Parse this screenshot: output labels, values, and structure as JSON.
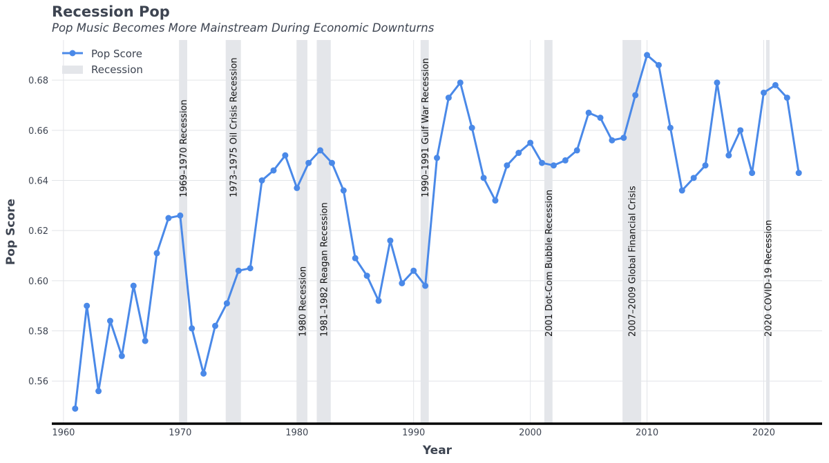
{
  "chart_data": {
    "type": "line",
    "title": "Recession Pop",
    "subtitle": "Pop Music Becomes More Mainstream During Economic Downturns",
    "xlabel": "Year",
    "ylabel": "Pop Score",
    "xlim": [
      1959,
      2025
    ],
    "ylim": [
      0.543,
      0.696
    ],
    "xticks": [
      1960,
      1970,
      1980,
      1990,
      2000,
      2010,
      2020
    ],
    "yticks": [
      0.56,
      0.58,
      0.6,
      0.62,
      0.64,
      0.66,
      0.68
    ],
    "ytick_labels": [
      "0.56",
      "0.58",
      "0.60",
      "0.62",
      "0.64",
      "0.66",
      "0.68"
    ],
    "grid": true,
    "legend_position": "top-left",
    "legend": [
      {
        "label": "Pop Score",
        "kind": "line-marker"
      },
      {
        "label": "Recession",
        "kind": "band"
      }
    ],
    "colors": {
      "line": "#4a89e8",
      "band": "#e4e6ea",
      "text": "#3d4451",
      "axis": "#000000"
    },
    "series": [
      {
        "name": "Pop Score",
        "x": [
          1961,
          1962,
          1963,
          1964,
          1965,
          1966,
          1967,
          1968,
          1969,
          1970,
          1971,
          1972,
          1973,
          1974,
          1975,
          1976,
          1977,
          1978,
          1979,
          1980,
          1981,
          1982,
          1983,
          1984,
          1985,
          1986,
          1987,
          1988,
          1989,
          1990,
          1991,
          1992,
          1993,
          1994,
          1995,
          1996,
          1997,
          1998,
          1999,
          2000,
          2001,
          2002,
          2003,
          2004,
          2005,
          2006,
          2007,
          2008,
          2009,
          2010,
          2011,
          2012,
          2013,
          2014,
          2015,
          2016,
          2017,
          2018,
          2019,
          2020,
          2021,
          2022,
          2023
        ],
        "values": [
          0.549,
          0.59,
          0.556,
          0.584,
          0.57,
          0.598,
          0.576,
          0.611,
          0.625,
          0.626,
          0.581,
          0.563,
          0.582,
          0.591,
          0.604,
          0.605,
          0.64,
          0.644,
          0.65,
          0.637,
          0.647,
          0.652,
          0.647,
          0.636,
          0.609,
          0.602,
          0.592,
          0.616,
          0.599,
          0.604,
          0.598,
          0.649,
          0.673,
          0.679,
          0.661,
          0.641,
          0.632,
          0.646,
          0.651,
          0.655,
          0.647,
          0.646,
          0.648,
          0.652,
          0.667,
          0.665,
          0.656,
          0.657,
          0.674,
          0.69,
          0.686,
          0.661,
          0.636,
          0.641,
          0.646,
          0.679,
          0.65,
          0.66,
          0.643,
          0.675,
          0.678,
          0.673,
          0.643
        ]
      }
    ],
    "recessions": [
      {
        "start": 1969.9,
        "end": 1970.6,
        "label": "1969–1970 Recession",
        "label_pos": "high"
      },
      {
        "start": 1973.9,
        "end": 1975.2,
        "label": "1973–1975 Oil Crisis Recession",
        "label_pos": "high"
      },
      {
        "start": 1980.0,
        "end": 1980.9,
        "label": "1980 Recession",
        "label_pos": "low"
      },
      {
        "start": 1981.7,
        "end": 1982.9,
        "label": "1981–1982 Reagan Recession",
        "label_pos": "low"
      },
      {
        "start": 1990.6,
        "end": 1991.3,
        "label": "1990–1991 Gulf War Recession",
        "label_pos": "high"
      },
      {
        "start": 2001.2,
        "end": 2001.9,
        "label": "2001 Dot-Com Bubble Recession",
        "label_pos": "low"
      },
      {
        "start": 2007.9,
        "end": 2009.5,
        "label": "2007–2009 Global Financial Crisis",
        "label_pos": "low"
      },
      {
        "start": 2020.2,
        "end": 2020.5,
        "label": "2020 COVID-19 Recession",
        "label_pos": "low"
      }
    ]
  }
}
